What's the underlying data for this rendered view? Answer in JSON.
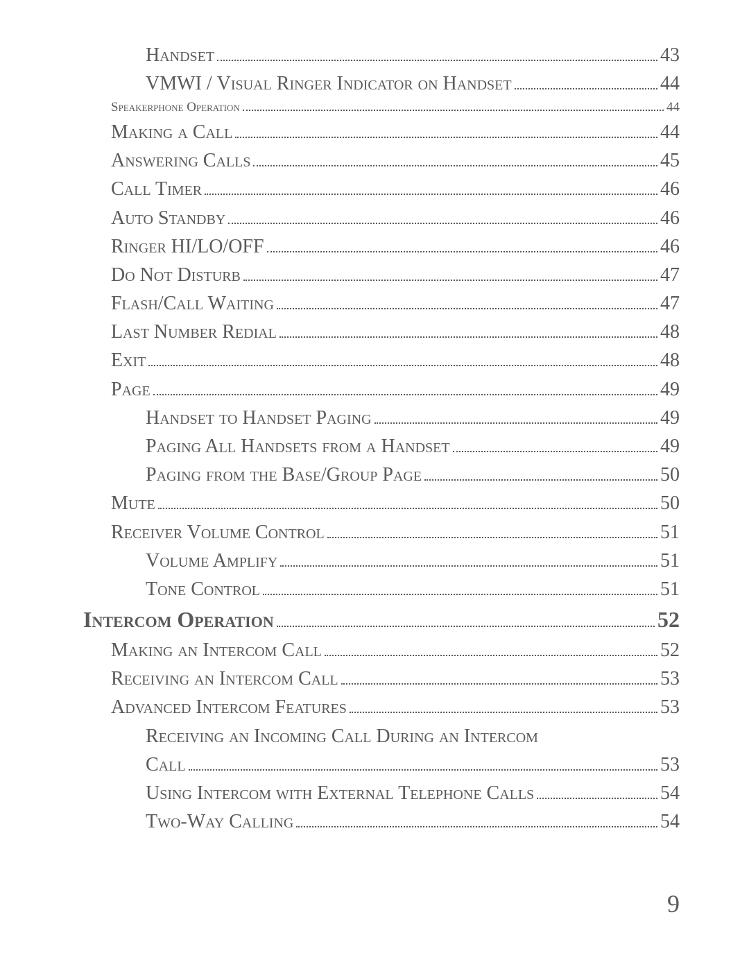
{
  "entries": [
    {
      "level": 3,
      "title": "Handset",
      "page": "43"
    },
    {
      "level": 3,
      "title": "VMWI / Visual Ringer Indicator on Handset",
      "page": "44",
      "allcaps_prefix": "VMWI / "
    },
    {
      "level": 2,
      "title": "Speakerphone Operation",
      "page": "44",
      "small": true
    },
    {
      "level": 2,
      "title": "Making a Call",
      "page": "44"
    },
    {
      "level": 2,
      "title": "Answering Calls",
      "page": "45"
    },
    {
      "level": 2,
      "title": "Call Timer",
      "page": "46"
    },
    {
      "level": 2,
      "title": "Auto Standby",
      "page": "46"
    },
    {
      "level": 2,
      "title": "Ringer HI/LO/OFF",
      "page": "46",
      "upper_segment": "HI/LO/OFF"
    },
    {
      "level": 2,
      "title": "Do Not Disturb",
      "page": "47"
    },
    {
      "level": 2,
      "title": "Flash/Call Waiting",
      "page": "47"
    },
    {
      "level": 2,
      "title": "Last Number Redial",
      "page": "48"
    },
    {
      "level": 2,
      "title": "Exit",
      "page": "48"
    },
    {
      "level": 2,
      "title": "Page",
      "page": "49"
    },
    {
      "level": 3,
      "title": "Handset to Handset Paging",
      "page": "49"
    },
    {
      "level": 3,
      "title": "Paging All Handsets from a Handset",
      "page": "49"
    },
    {
      "level": 3,
      "title": "Paging from the Base/Group Page",
      "page": "50"
    },
    {
      "level": 2,
      "title": "Mute",
      "page": "50"
    },
    {
      "level": 2,
      "title": "Receiver Volume Control",
      "page": "51"
    },
    {
      "level": 3,
      "title": "Volume Amplify",
      "page": "51"
    },
    {
      "level": 3,
      "title": "Tone Control",
      "page": "51"
    },
    {
      "level": 1,
      "title": "Intercom Operation",
      "page": "52"
    },
    {
      "level": 2,
      "title": "Making an Intercom Call",
      "page": "52"
    },
    {
      "level": 2,
      "title": "Receiving an Intercom Call",
      "page": "53"
    },
    {
      "level": 2,
      "title": "Advanced Intercom Features",
      "page": "53"
    },
    {
      "level": 3,
      "title": "Receiving an Incoming Call During an Intercom Call",
      "page": "53",
      "wrap": true
    },
    {
      "level": 3,
      "title": "Using Intercom with External Telephone Calls",
      "page": "54"
    },
    {
      "level": 3,
      "title": "Two-Way Calling",
      "page": "54"
    }
  ],
  "footer_page": "9",
  "colors": {
    "text": "#5a5a5a",
    "background": "#ffffff"
  }
}
